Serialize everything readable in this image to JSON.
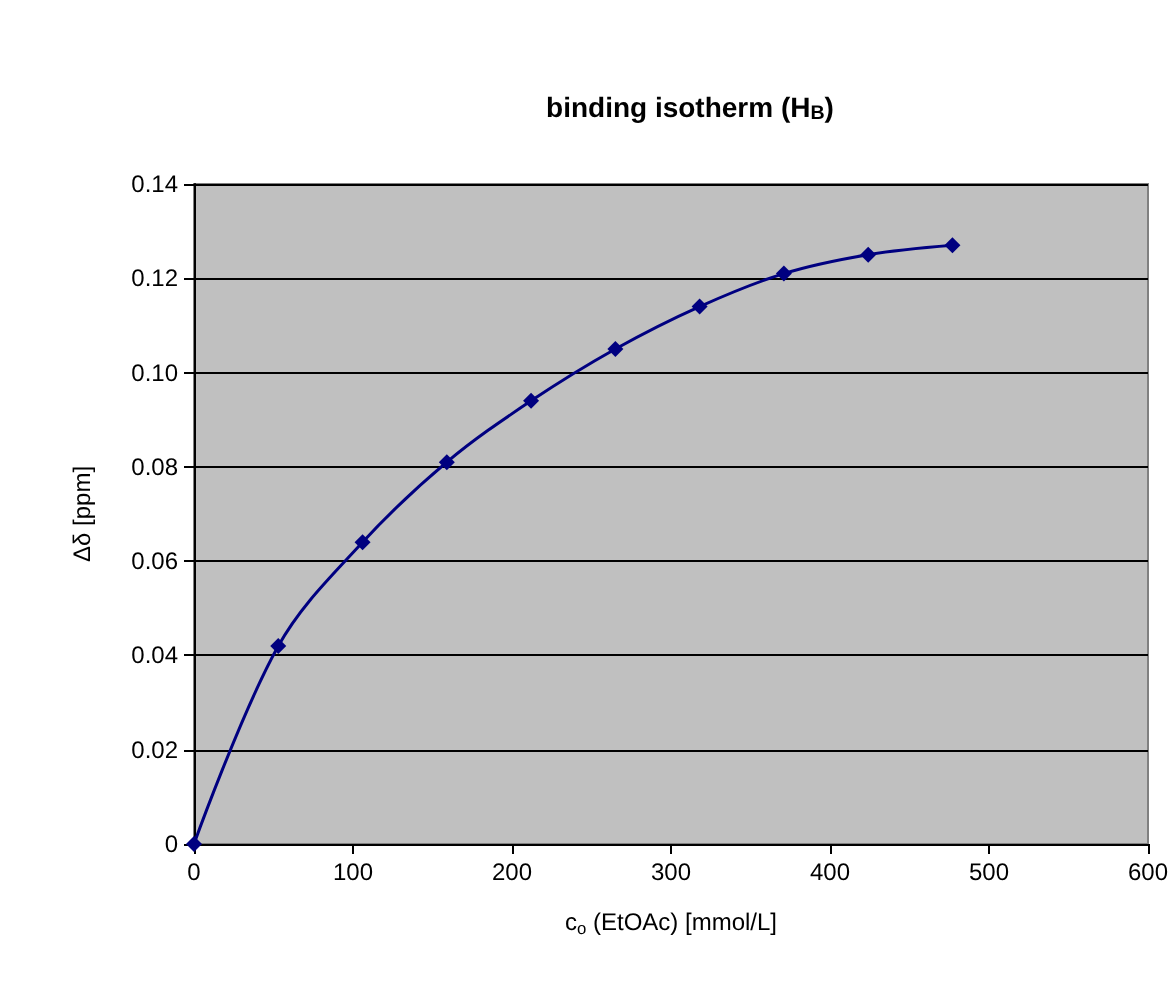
{
  "chart_data": {
    "type": "line",
    "title": "binding isotherm (H$_{B}$)",
    "xlabel": "c$_{o}$ (EtOAc) [mmol/L]",
    "ylabel": "Δδ [ppm]",
    "x": [
      0,
      53,
      106,
      159,
      212,
      265,
      318,
      371,
      424,
      477
    ],
    "series": [
      {
        "color": "#000080",
        "values": [
          0,
          0.042,
          0.064,
          0.081,
          0.094,
          0.105,
          0.114,
          0.121,
          0.125,
          0.127
        ]
      }
    ],
    "xlim": [
      0,
      600
    ],
    "xticks": [
      0,
      100,
      200,
      300,
      400,
      500,
      600
    ],
    "ylim": [
      0,
      0.14
    ],
    "yticks": [
      0,
      {
        "value": 0.02,
        "label": "0.02"
      },
      {
        "value": 0.04,
        "label": "0.04"
      },
      {
        "value": 0.06,
        "label": "0.06"
      },
      {
        "value": 0.08,
        "label": "0.08"
      },
      {
        "value": 0.1,
        "label": "0.10"
      },
      {
        "value": 0.12,
        "label": "0.12"
      },
      {
        "value": 0.14,
        "label": "0.14"
      }
    ],
    "grid": "y",
    "marker": "diamond",
    "line_style": "solid"
  }
}
